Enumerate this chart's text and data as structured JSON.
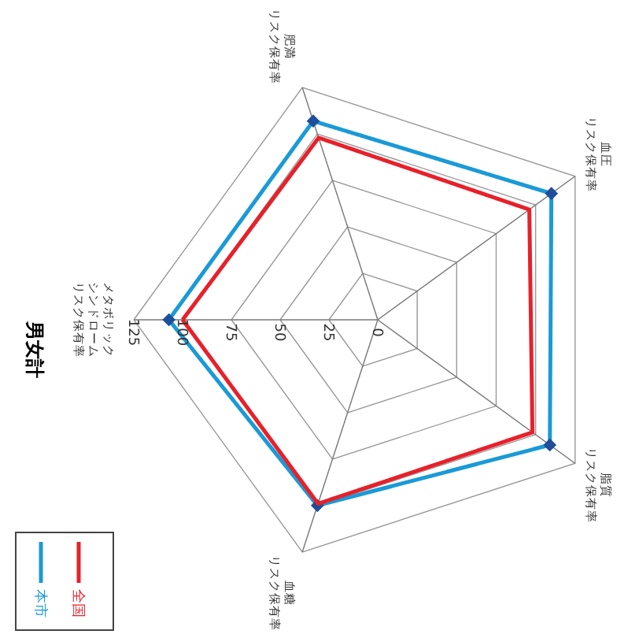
{
  "chart_data": {
    "type": "radar",
    "title": "男女計",
    "categories": [
      "メタボリックシンドロームリスク保有率",
      "肥満リスク保有率",
      "血圧リスク保有率",
      "脂質リスク保有率",
      "血糖リスク保有率"
    ],
    "ylim": [
      0,
      125
    ],
    "yticks": [
      0,
      25,
      50,
      75,
      100,
      125
    ],
    "grid": true,
    "legend": "bottom left",
    "line_style": "solid",
    "series": [
      {
        "name": "本市",
        "color": "#1a9ad6",
        "marker": "diamond",
        "values": [
          107,
          107,
          110,
          109,
          100
        ]
      },
      {
        "name": "全国",
        "color": "#e8202a",
        "marker": "none",
        "values": [
          100,
          98,
          96,
          98,
          99
        ]
      }
    ]
  }
}
